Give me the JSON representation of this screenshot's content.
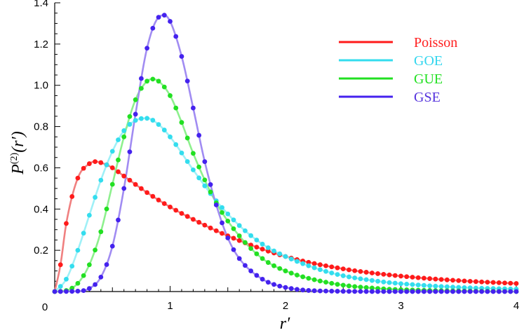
{
  "chart_data": {
    "type": "line",
    "xlabel": "r′",
    "ylabel_main": "P",
    "ylabel_sup": "(2)",
    "ylabel_arg": "(r′)",
    "xlim": [
      0,
      4
    ],
    "ylim": [
      0,
      1.4
    ],
    "x_ticks": [
      {
        "v": 0,
        "label": "0"
      },
      {
        "v": 1,
        "label": "1"
      },
      {
        "v": 2,
        "label": "2"
      },
      {
        "v": 3,
        "label": "3"
      },
      {
        "v": 4,
        "label": "4"
      }
    ],
    "y_ticks": [
      {
        "v": 0.2,
        "label": "0.2"
      },
      {
        "v": 0.4,
        "label": "0.4"
      },
      {
        "v": 0.6,
        "label": "0.6"
      },
      {
        "v": 0.8,
        "label": "0.8"
      },
      {
        "v": 1.0,
        "label": "1.0"
      },
      {
        "v": 1.2,
        "label": "1.2"
      },
      {
        "v": 1.4,
        "label": "1.4"
      }
    ],
    "legend_position": "top-right",
    "series": [
      {
        "name": "Poisson",
        "key": "poisson",
        "dot_color": "#ff1a1a",
        "line_color": "#f08080",
        "label_color": "#ff2020",
        "x": [
          0.0,
          0.05,
          0.1,
          0.2,
          0.3,
          0.35,
          0.4,
          0.5,
          0.6,
          0.8,
          1.0,
          1.2,
          1.5,
          2.0,
          2.5,
          3.0,
          3.5,
          4.0
        ],
        "y": [
          0.0,
          0.13,
          0.33,
          0.55,
          0.62,
          0.63,
          0.625,
          0.6,
          0.56,
          0.48,
          0.41,
          0.35,
          0.27,
          0.17,
          0.11,
          0.075,
          0.053,
          0.039
        ]
      },
      {
        "name": "GOE",
        "key": "goe",
        "dot_color": "#33ddee",
        "line_color": "#9ff0f7",
        "label_color": "#33d6ee",
        "x": [
          0.0,
          0.1,
          0.2,
          0.3,
          0.4,
          0.5,
          0.6,
          0.7,
          0.8,
          0.9,
          1.0,
          1.2,
          1.4,
          1.6,
          1.8,
          2.0,
          2.4,
          2.8,
          3.2,
          3.6,
          4.0
        ],
        "y": [
          0.0,
          0.06,
          0.2,
          0.37,
          0.54,
          0.68,
          0.78,
          0.83,
          0.84,
          0.81,
          0.75,
          0.59,
          0.44,
          0.32,
          0.23,
          0.17,
          0.09,
          0.05,
          0.03,
          0.018,
          0.012
        ]
      },
      {
        "name": "GUE",
        "key": "gue",
        "dot_color": "#22e022",
        "line_color": "#8ef08e",
        "label_color": "#22e022",
        "x": [
          0.0,
          0.1,
          0.2,
          0.3,
          0.4,
          0.5,
          0.6,
          0.7,
          0.8,
          0.85,
          0.9,
          1.0,
          1.1,
          1.2,
          1.4,
          1.6,
          1.8,
          2.0,
          2.4,
          2.8,
          3.2,
          4.0
        ],
        "y": [
          0.0,
          0.005,
          0.04,
          0.13,
          0.29,
          0.52,
          0.75,
          0.93,
          1.02,
          1.03,
          1.02,
          0.95,
          0.82,
          0.67,
          0.43,
          0.27,
          0.16,
          0.1,
          0.04,
          0.015,
          0.006,
          0.0
        ]
      },
      {
        "name": "GSE",
        "key": "gse",
        "dot_color": "#4422ee",
        "line_color": "#a18cf2",
        "label_color": "#5533dd",
        "x": [
          0.0,
          0.2,
          0.3,
          0.4,
          0.5,
          0.6,
          0.7,
          0.8,
          0.9,
          0.95,
          1.0,
          1.1,
          1.2,
          1.3,
          1.4,
          1.5,
          1.6,
          1.8,
          2.0,
          2.4,
          3.0,
          4.0
        ],
        "y": [
          0.0,
          0.002,
          0.015,
          0.07,
          0.22,
          0.5,
          0.86,
          1.18,
          1.33,
          1.34,
          1.31,
          1.14,
          0.89,
          0.63,
          0.42,
          0.26,
          0.16,
          0.06,
          0.02,
          0.002,
          0.0,
          0.0
        ]
      }
    ]
  }
}
